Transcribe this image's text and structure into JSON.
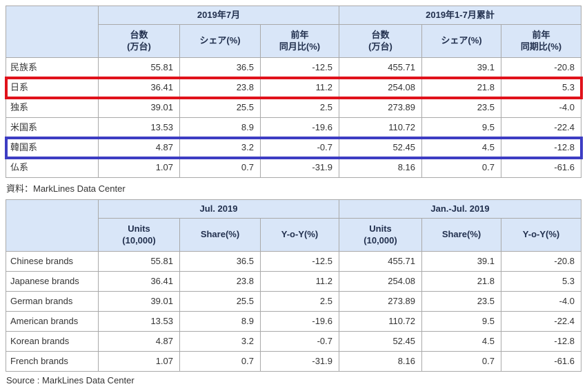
{
  "colors": {
    "header_bg": "#d9e6f8",
    "header_text": "#22304e",
    "table_border": "#a9a9a9",
    "body_text": "#333333",
    "highlight_red": "#e0121b",
    "highlight_blue": "#3d3dc3"
  },
  "chart_data": [
    {
      "type": "table",
      "language": "ja",
      "group_headers": [
        "2019年7月",
        "2019年1-7月累計"
      ],
      "col_headers": [
        "台数\n(万台)",
        "シェア(%)",
        "前年\n同月比(%)",
        "台数\n(万台)",
        "シェア(%)",
        "前年\n同期比(%)"
      ],
      "rows": [
        {
          "label": "民族系",
          "values": [
            "55.81",
            "36.5",
            "-12.5",
            "455.71",
            "39.1",
            "-20.8"
          ],
          "highlight": null
        },
        {
          "label": "日系",
          "values": [
            "36.41",
            "23.8",
            "11.2",
            "254.08",
            "21.8",
            "5.3"
          ],
          "highlight": "red"
        },
        {
          "label": "独系",
          "values": [
            "39.01",
            "25.5",
            "2.5",
            "273.89",
            "23.5",
            "-4.0"
          ],
          "highlight": null
        },
        {
          "label": "米国系",
          "values": [
            "13.53",
            "8.9",
            "-19.6",
            "110.72",
            "9.5",
            "-22.4"
          ],
          "highlight": null
        },
        {
          "label": "韓国系",
          "values": [
            "4.87",
            "3.2",
            "-0.7",
            "52.45",
            "4.5",
            "-12.8"
          ],
          "highlight": "blue"
        },
        {
          "label": "仏系",
          "values": [
            "1.07",
            "0.7",
            "-31.9",
            "8.16",
            "0.7",
            "-61.6"
          ],
          "highlight": null
        }
      ],
      "source": "資料：MarkLines Data Center"
    },
    {
      "type": "table",
      "language": "en",
      "group_headers": [
        "Jul. 2019",
        "Jan.-Jul. 2019"
      ],
      "col_headers": [
        "Units\n(10,000)",
        "Share(%)",
        "Y-o-Y(%)",
        "Units\n(10,000)",
        "Share(%)",
        "Y-o-Y(%)"
      ],
      "rows": [
        {
          "label": "Chinese brands",
          "values": [
            "55.81",
            "36.5",
            "-12.5",
            "455.71",
            "39.1",
            "-20.8"
          ],
          "highlight": null
        },
        {
          "label": "Japanese brands",
          "values": [
            "36.41",
            "23.8",
            "11.2",
            "254.08",
            "21.8",
            "5.3"
          ],
          "highlight": null
        },
        {
          "label": "German brands",
          "values": [
            "39.01",
            "25.5",
            "2.5",
            "273.89",
            "23.5",
            "-4.0"
          ],
          "highlight": null
        },
        {
          "label": "American brands",
          "values": [
            "13.53",
            "8.9",
            "-19.6",
            "110.72",
            "9.5",
            "-22.4"
          ],
          "highlight": null
        },
        {
          "label": "Korean brands",
          "values": [
            "4.87",
            "3.2",
            "-0.7",
            "52.45",
            "4.5",
            "-12.8"
          ],
          "highlight": null
        },
        {
          "label": "French brands",
          "values": [
            "1.07",
            "0.7",
            "-31.9",
            "8.16",
            "0.7",
            "-61.6"
          ],
          "highlight": null
        }
      ],
      "source": "Source : MarkLines Data Center"
    }
  ]
}
